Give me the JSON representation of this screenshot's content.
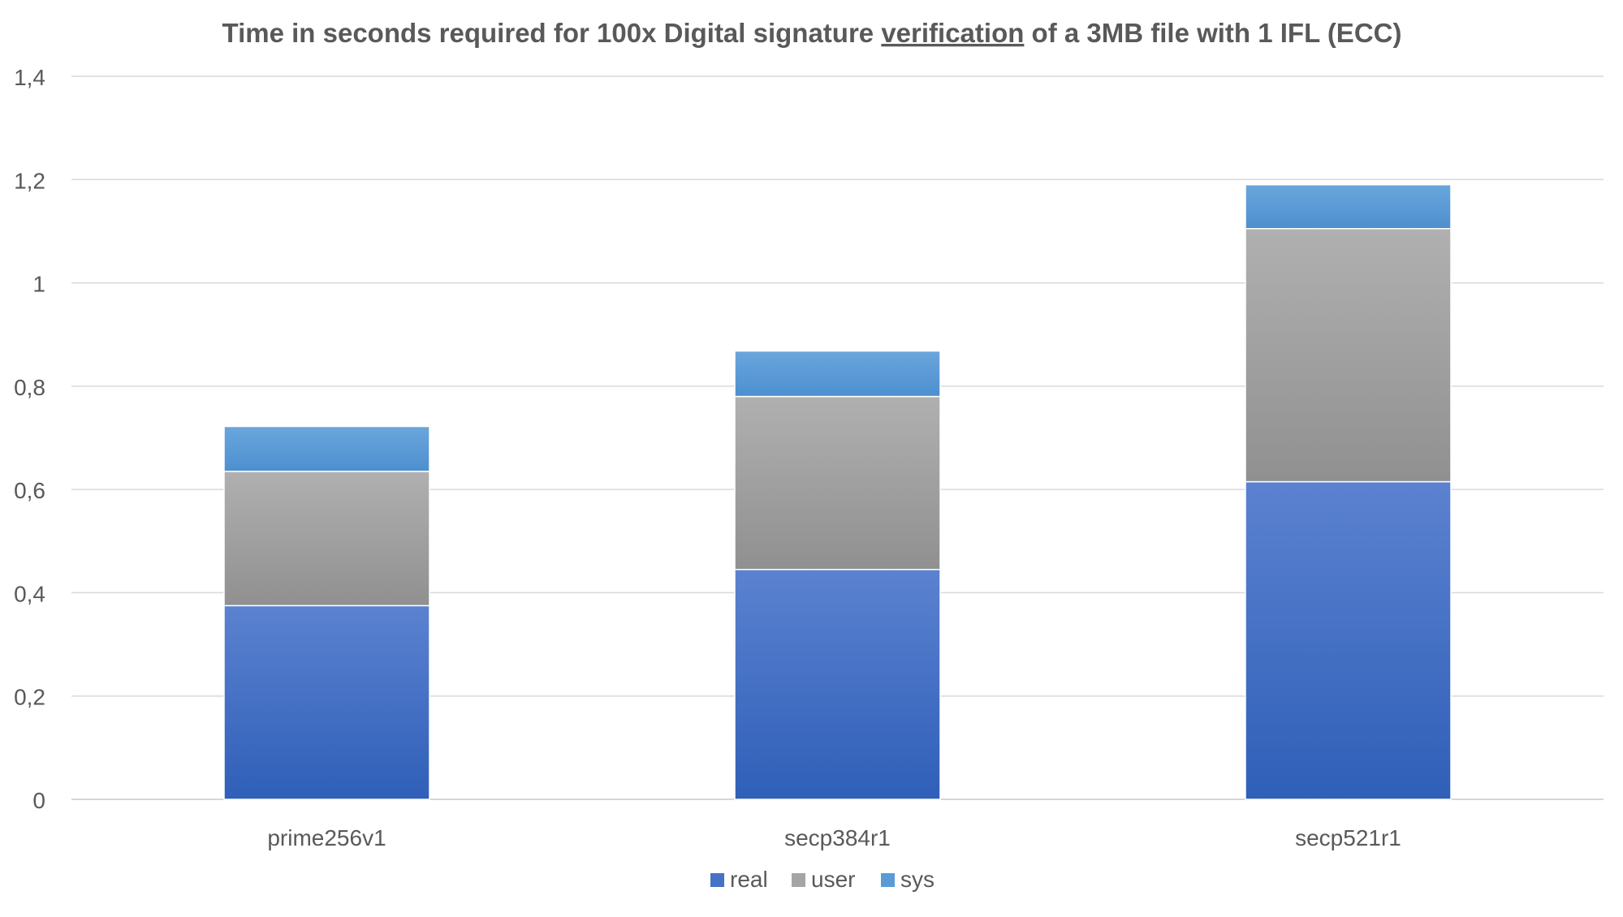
{
  "chart_data": {
    "type": "bar",
    "stacked": true,
    "title_parts": {
      "before": "Time in seconds required for 100x Digital signature ",
      "underlined": "verification",
      "after": " of a 3MB file with 1 IFL (ECC)"
    },
    "xlabel": "",
    "ylabel": "",
    "categories": [
      "prime256v1",
      "secp384r1",
      "secp521r1"
    ],
    "series": [
      {
        "name": "real",
        "values": [
          0.375,
          0.445,
          0.615
        ],
        "color": "#4472c4"
      },
      {
        "name": "user",
        "values": [
          0.26,
          0.335,
          0.49
        ],
        "color": "#a5a5a5"
      },
      {
        "name": "sys",
        "values": [
          0.087,
          0.088,
          0.085
        ],
        "color": "#5b9bd5"
      }
    ],
    "ylim": [
      0,
      1.4
    ],
    "yticks": [
      0,
      0.2,
      0.4,
      0.6,
      0.8,
      1,
      1.2,
      1.4
    ],
    "ytick_labels": [
      "0",
      "0,2",
      "0,4",
      "0,6",
      "0,8",
      "1",
      "1,2",
      "1,4"
    ],
    "grid": true,
    "legend_position": "bottom"
  }
}
